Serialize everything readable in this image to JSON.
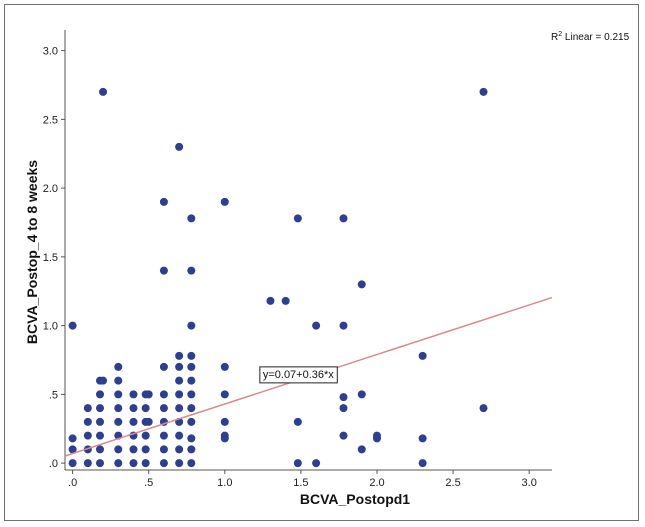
{
  "chart_data": {
    "type": "scatter",
    "xlabel": "BCVA_Postopd1",
    "ylabel": "BCVA_Postop_4 to 8 weeks",
    "xlim": [
      -0.05,
      3.15
    ],
    "ylim": [
      -0.05,
      3.15
    ],
    "x_ticks": [
      ".0",
      ".5",
      "1.0",
      "1.5",
      "2.0",
      "2.5",
      "3.0"
    ],
    "y_ticks": [
      ".0",
      ".5",
      "1.0",
      "1.5",
      "2.0",
      "2.5",
      "3.0"
    ],
    "x_tick_values": [
      0,
      0.5,
      1,
      1.5,
      2,
      2.5,
      3
    ],
    "y_tick_values": [
      0,
      0.5,
      1,
      1.5,
      2,
      2.5,
      3
    ],
    "grid": false,
    "point_color": "#2e3f8f",
    "line_color": "#d98b8b",
    "r2_label": {
      "r": "R",
      "sup": "2",
      "rest": " Linear = 0.215"
    },
    "fit": {
      "label": "y=0.07+0.36*x",
      "intercept": 0.07,
      "slope": 0.36,
      "x_range": [
        -0.05,
        3.15
      ],
      "label_at": [
        1.25,
        0.62
      ]
    },
    "points": [
      [
        0,
        0
      ],
      [
        0,
        0.1
      ],
      [
        0,
        0.18
      ],
      [
        0,
        1
      ],
      [
        0.1,
        0
      ],
      [
        0.1,
        0.1
      ],
      [
        0.1,
        0.2
      ],
      [
        0.1,
        0.3
      ],
      [
        0.1,
        0.4
      ],
      [
        0.18,
        0
      ],
      [
        0.18,
        0.1
      ],
      [
        0.18,
        0.2
      ],
      [
        0.18,
        0.3
      ],
      [
        0.18,
        0.4
      ],
      [
        0.18,
        0.5
      ],
      [
        0.18,
        0.6
      ],
      [
        0.2,
        0.6
      ],
      [
        0.2,
        2.7
      ],
      [
        0.3,
        0
      ],
      [
        0.3,
        0.1
      ],
      [
        0.3,
        0.2
      ],
      [
        0.3,
        0.3
      ],
      [
        0.3,
        0.4
      ],
      [
        0.3,
        0.5
      ],
      [
        0.3,
        0.6
      ],
      [
        0.3,
        0.7
      ],
      [
        0.4,
        0
      ],
      [
        0.4,
        0.1
      ],
      [
        0.4,
        0.2
      ],
      [
        0.4,
        0.3
      ],
      [
        0.4,
        0.4
      ],
      [
        0.4,
        0.5
      ],
      [
        0.48,
        0
      ],
      [
        0.48,
        0.1
      ],
      [
        0.48,
        0.2
      ],
      [
        0.48,
        0.3
      ],
      [
        0.48,
        0.4
      ],
      [
        0.48,
        0.5
      ],
      [
        0.5,
        0.3
      ],
      [
        0.5,
        0.5
      ],
      [
        0.6,
        0
      ],
      [
        0.6,
        0.1
      ],
      [
        0.6,
        0.2
      ],
      [
        0.6,
        0.3
      ],
      [
        0.6,
        0.4
      ],
      [
        0.6,
        0.5
      ],
      [
        0.6,
        0.7
      ],
      [
        0.6,
        1.4
      ],
      [
        0.6,
        1.9
      ],
      [
        0.7,
        0
      ],
      [
        0.7,
        0.1
      ],
      [
        0.7,
        0.2
      ],
      [
        0.7,
        0.3
      ],
      [
        0.7,
        0.4
      ],
      [
        0.7,
        0.5
      ],
      [
        0.7,
        0.6
      ],
      [
        0.7,
        0.7
      ],
      [
        0.7,
        0.78
      ],
      [
        0.7,
        2.3
      ],
      [
        0.78,
        0
      ],
      [
        0.78,
        0.1
      ],
      [
        0.78,
        0.18
      ],
      [
        0.78,
        0.3
      ],
      [
        0.78,
        0.4
      ],
      [
        0.78,
        0.5
      ],
      [
        0.78,
        0.6
      ],
      [
        0.78,
        0.7
      ],
      [
        0.78,
        0.78
      ],
      [
        0.78,
        1
      ],
      [
        0.78,
        1.4
      ],
      [
        0.78,
        1.78
      ],
      [
        1,
        0.18
      ],
      [
        1,
        0.2
      ],
      [
        1,
        0.3
      ],
      [
        1,
        0.5
      ],
      [
        1,
        0.7
      ],
      [
        1,
        1.9
      ],
      [
        1.3,
        1.18
      ],
      [
        1.4,
        1.18
      ],
      [
        1.48,
        0
      ],
      [
        1.48,
        0.3
      ],
      [
        1.48,
        1.78
      ],
      [
        1.6,
        0
      ],
      [
        1.6,
        1
      ],
      [
        1.78,
        0.2
      ],
      [
        1.78,
        0.4
      ],
      [
        1.78,
        0.48
      ],
      [
        1.78,
        1
      ],
      [
        1.78,
        1.78
      ],
      [
        1.9,
        0.1
      ],
      [
        1.9,
        0.5
      ],
      [
        1.9,
        1.3
      ],
      [
        2,
        0.18
      ],
      [
        2,
        0.2
      ],
      [
        2.3,
        0
      ],
      [
        2.3,
        0.18
      ],
      [
        2.3,
        0.78
      ],
      [
        2.7,
        0.4
      ],
      [
        2.7,
        2.7
      ]
    ]
  }
}
